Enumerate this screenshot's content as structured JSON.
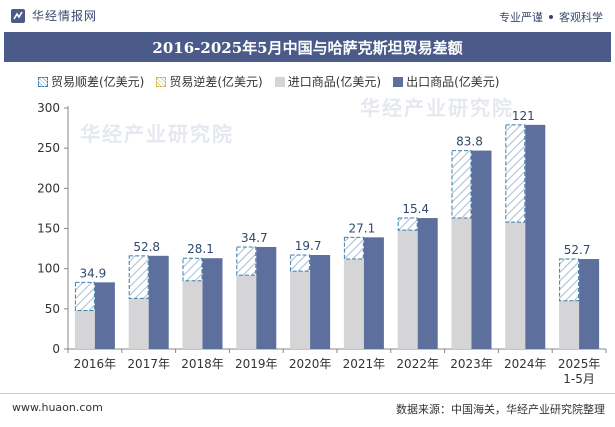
{
  "header": {
    "brand": "华经情报网",
    "tags": [
      "专业严谨",
      "客观科学"
    ]
  },
  "title": "2016-2025年5月中国与哈萨克斯坦贸易差额",
  "legend": {
    "surplus": "贸易顺差(亿美元)",
    "deficit": "贸易逆差(亿美元)",
    "import": "进口商品(亿美元)",
    "export": "出口商品(亿美元)"
  },
  "watermark": "华经产业研究院",
  "footer": {
    "website": "www.huaon.com",
    "source": "数据来源：中国海关，华经产业研究院整理"
  },
  "colors": {
    "export": "#5d6f9c",
    "import": "#d5d5d8",
    "surplus_stroke": "#3c7ea8",
    "title_bg": "#4a5b8a",
    "label": "#2f4a6e"
  },
  "chart_data": {
    "type": "bar",
    "categories": [
      "2016年",
      "2017年",
      "2018年",
      "2019年",
      "2020年",
      "2021年",
      "2022年",
      "2023年",
      "2024年",
      "2025年\n1-5月"
    ],
    "series": [
      {
        "name": "贸易顺差(亿美元)",
        "values": [
          34.9,
          52.8,
          28.1,
          34.7,
          19.7,
          27.1,
          15.4,
          83.8,
          121,
          52.7
        ]
      },
      {
        "name": "贸易逆差(亿美元)",
        "values": [
          0,
          0,
          0,
          0,
          0,
          0,
          0,
          0,
          0,
          0
        ]
      },
      {
        "name": "进口商品(亿美元)",
        "values": [
          48,
          63,
          85,
          92,
          97,
          112,
          148,
          163,
          158,
          60
        ]
      },
      {
        "name": "出口商品(亿美元)",
        "values": [
          83,
          116,
          113,
          127,
          117,
          139,
          163,
          247,
          279,
          112
        ]
      }
    ],
    "surplus_labels": [
      "34.9",
      "52.8",
      "28.1",
      "34.7",
      "19.7",
      "27.1",
      "15.4",
      "83.8",
      "121",
      "52.7"
    ],
    "ylim": [
      0,
      300
    ],
    "yticks": [
      0,
      50,
      100,
      150,
      200,
      250,
      300
    ],
    "grid": false
  }
}
